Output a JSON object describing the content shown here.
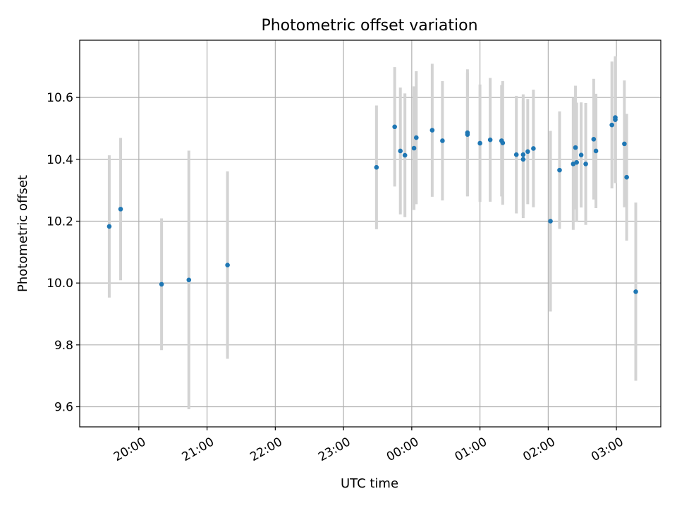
{
  "chart_data": {
    "type": "scatter",
    "title": "Photometric offset variation",
    "xlabel": "UTC time",
    "ylabel": "Photometric offset",
    "x_unit": "time (HH:MM, UTC)",
    "xlim": [
      "19:08",
      "03:39"
    ],
    "ylim": [
      9.535,
      10.785
    ],
    "x_ticks": [
      "20:00",
      "21:00",
      "22:00",
      "23:00",
      "00:00",
      "01:00",
      "02:00",
      "03:00"
    ],
    "y_ticks": [
      "9.6",
      "9.8",
      "10.0",
      "10.2",
      "10.4",
      "10.6"
    ],
    "grid": true,
    "legend": "none",
    "colors": {
      "point": "#1f77b4",
      "errorbar": "#d3d3d3",
      "grid": "#b0b0b0"
    },
    "points": [
      {
        "x": "19:34",
        "y": 10.183,
        "yerr": 0.23
      },
      {
        "x": "19:44",
        "y": 10.239,
        "yerr": 0.23
      },
      {
        "x": "20:20",
        "y": 9.996,
        "yerr": 0.213
      },
      {
        "x": "20:44",
        "y": 10.01,
        "yerr": 0.418
      },
      {
        "x": "21:18",
        "y": 10.058,
        "yerr": 0.303
      },
      {
        "x": "23:29",
        "y": 10.374,
        "yerr": 0.2
      },
      {
        "x": "23:45",
        "y": 10.505,
        "yerr": 0.193
      },
      {
        "x": "23:50",
        "y": 10.427,
        "yerr": 0.205
      },
      {
        "x": "23:54",
        "y": 10.413,
        "yerr": 0.2
      },
      {
        "x": "00:02",
        "y": 10.436,
        "yerr": 0.2
      },
      {
        "x": "00:04",
        "y": 10.47,
        "yerr": 0.215
      },
      {
        "x": "00:18",
        "y": 10.494,
        "yerr": 0.215
      },
      {
        "x": "00:27",
        "y": 10.46,
        "yerr": 0.193
      },
      {
        "x": "00:49",
        "y": 10.486,
        "yerr": 0.205
      },
      {
        "x": "00:49",
        "y": 10.48,
        "yerr": 0.2
      },
      {
        "x": "01:00",
        "y": 10.452,
        "yerr": 0.19
      },
      {
        "x": "01:09",
        "y": 10.463,
        "yerr": 0.2
      },
      {
        "x": "01:19",
        "y": 10.46,
        "yerr": 0.18
      },
      {
        "x": "01:20",
        "y": 10.453,
        "yerr": 0.2
      },
      {
        "x": "01:32",
        "y": 10.415,
        "yerr": 0.19
      },
      {
        "x": "01:38",
        "y": 10.4,
        "yerr": 0.19
      },
      {
        "x": "01:38",
        "y": 10.415,
        "yerr": 0.195
      },
      {
        "x": "01:42",
        "y": 10.425,
        "yerr": 0.17
      },
      {
        "x": "01:47",
        "y": 10.435,
        "yerr": 0.19
      },
      {
        "x": "02:02",
        "y": 10.2,
        "yerr": 0.292
      },
      {
        "x": "02:10",
        "y": 10.365,
        "yerr": 0.19
      },
      {
        "x": "02:22",
        "y": 10.385,
        "yerr": 0.213
      },
      {
        "x": "02:24",
        "y": 10.438,
        "yerr": 0.2
      },
      {
        "x": "02:25",
        "y": 10.39,
        "yerr": 0.193
      },
      {
        "x": "02:29",
        "y": 10.414,
        "yerr": 0.17
      },
      {
        "x": "02:33",
        "y": 10.385,
        "yerr": 0.197
      },
      {
        "x": "02:40",
        "y": 10.465,
        "yerr": 0.195
      },
      {
        "x": "02:42",
        "y": 10.427,
        "yerr": 0.185
      },
      {
        "x": "02:56",
        "y": 10.511,
        "yerr": 0.205
      },
      {
        "x": "02:59",
        "y": 10.528,
        "yerr": 0.205
      },
      {
        "x": "02:59",
        "y": 10.535,
        "yerr": 0.197
      },
      {
        "x": "03:07",
        "y": 10.45,
        "yerr": 0.205
      },
      {
        "x": "03:09",
        "y": 10.342,
        "yerr": 0.205
      },
      {
        "x": "03:17",
        "y": 9.972,
        "yerr": 0.288
      }
    ]
  }
}
